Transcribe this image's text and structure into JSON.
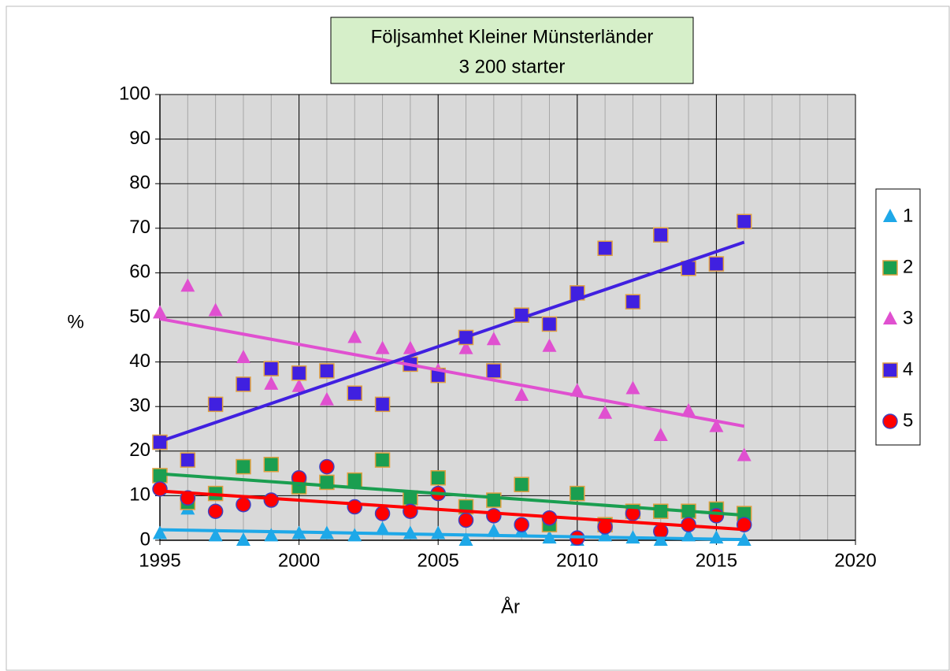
{
  "chart_data": {
    "type": "scatter",
    "title": "Följsamhet Kleiner Münsterländer",
    "subtitle": "3 200 starter",
    "xlabel": "År",
    "ylabel": "%",
    "x": [
      1995,
      1996,
      1997,
      1998,
      1999,
      2000,
      2001,
      2002,
      2003,
      2004,
      2005,
      2006,
      2007,
      2008,
      2009,
      2010,
      2011,
      2012,
      2013,
      2014,
      2015,
      2016
    ],
    "series": [
      {
        "name": "1",
        "color": "#1ea8e8",
        "marker": "triangle",
        "trendline": true,
        "values": [
          1.5,
          7,
          1,
          0,
          1,
          1.5,
          1.5,
          1,
          2.5,
          1.5,
          1.5,
          0,
          2,
          2,
          0.5,
          0,
          1,
          0.5,
          0,
          1,
          0.5,
          0
        ]
      },
      {
        "name": "2",
        "color": "#1a9e50",
        "marker": "square",
        "trendline": true,
        "values": [
          14.5,
          8.5,
          10.5,
          16.5,
          17,
          12,
          13,
          13.5,
          18,
          9.5,
          14,
          7.5,
          9,
          12.5,
          3.5,
          10.5,
          3.5,
          6.5,
          6.5,
          6.5,
          7,
          6
        ]
      },
      {
        "name": "3",
        "color": "#e050d0",
        "marker": "triangle",
        "trendline": true,
        "values": [
          51,
          57,
          51.5,
          41,
          35,
          34.5,
          31.5,
          45.5,
          43,
          43,
          38,
          43,
          45,
          32.5,
          43.5,
          33.5,
          28.5,
          34,
          23.5,
          29,
          25.5,
          19
        ]
      },
      {
        "name": "4",
        "color": "#4020e0",
        "marker": "square",
        "trendline": true,
        "values": [
          22,
          18,
          30.5,
          35,
          38.5,
          37.5,
          38,
          33,
          30.5,
          39.5,
          37,
          45.5,
          38,
          50.5,
          48.5,
          55.5,
          65.5,
          53.5,
          68.5,
          61,
          62,
          71.5
        ]
      },
      {
        "name": "5",
        "color": "#ff0000",
        "marker": "circle",
        "trendline": true,
        "values": [
          11.5,
          9.5,
          6.5,
          8,
          9,
          14,
          16.5,
          7.5,
          6,
          6.5,
          10.5,
          4.5,
          5.5,
          3.5,
          5,
          0.5,
          3,
          6,
          2,
          3.5,
          5.5,
          3.5
        ]
      }
    ],
    "xlim": [
      1995,
      2020
    ],
    "xticks": [
      1995,
      2000,
      2005,
      2010,
      2015,
      2020
    ],
    "ylim": [
      0,
      100
    ],
    "yticks": [
      0,
      10,
      20,
      30,
      40,
      50,
      60,
      70,
      80,
      90,
      100
    ],
    "grid": true,
    "legend": "right"
  }
}
